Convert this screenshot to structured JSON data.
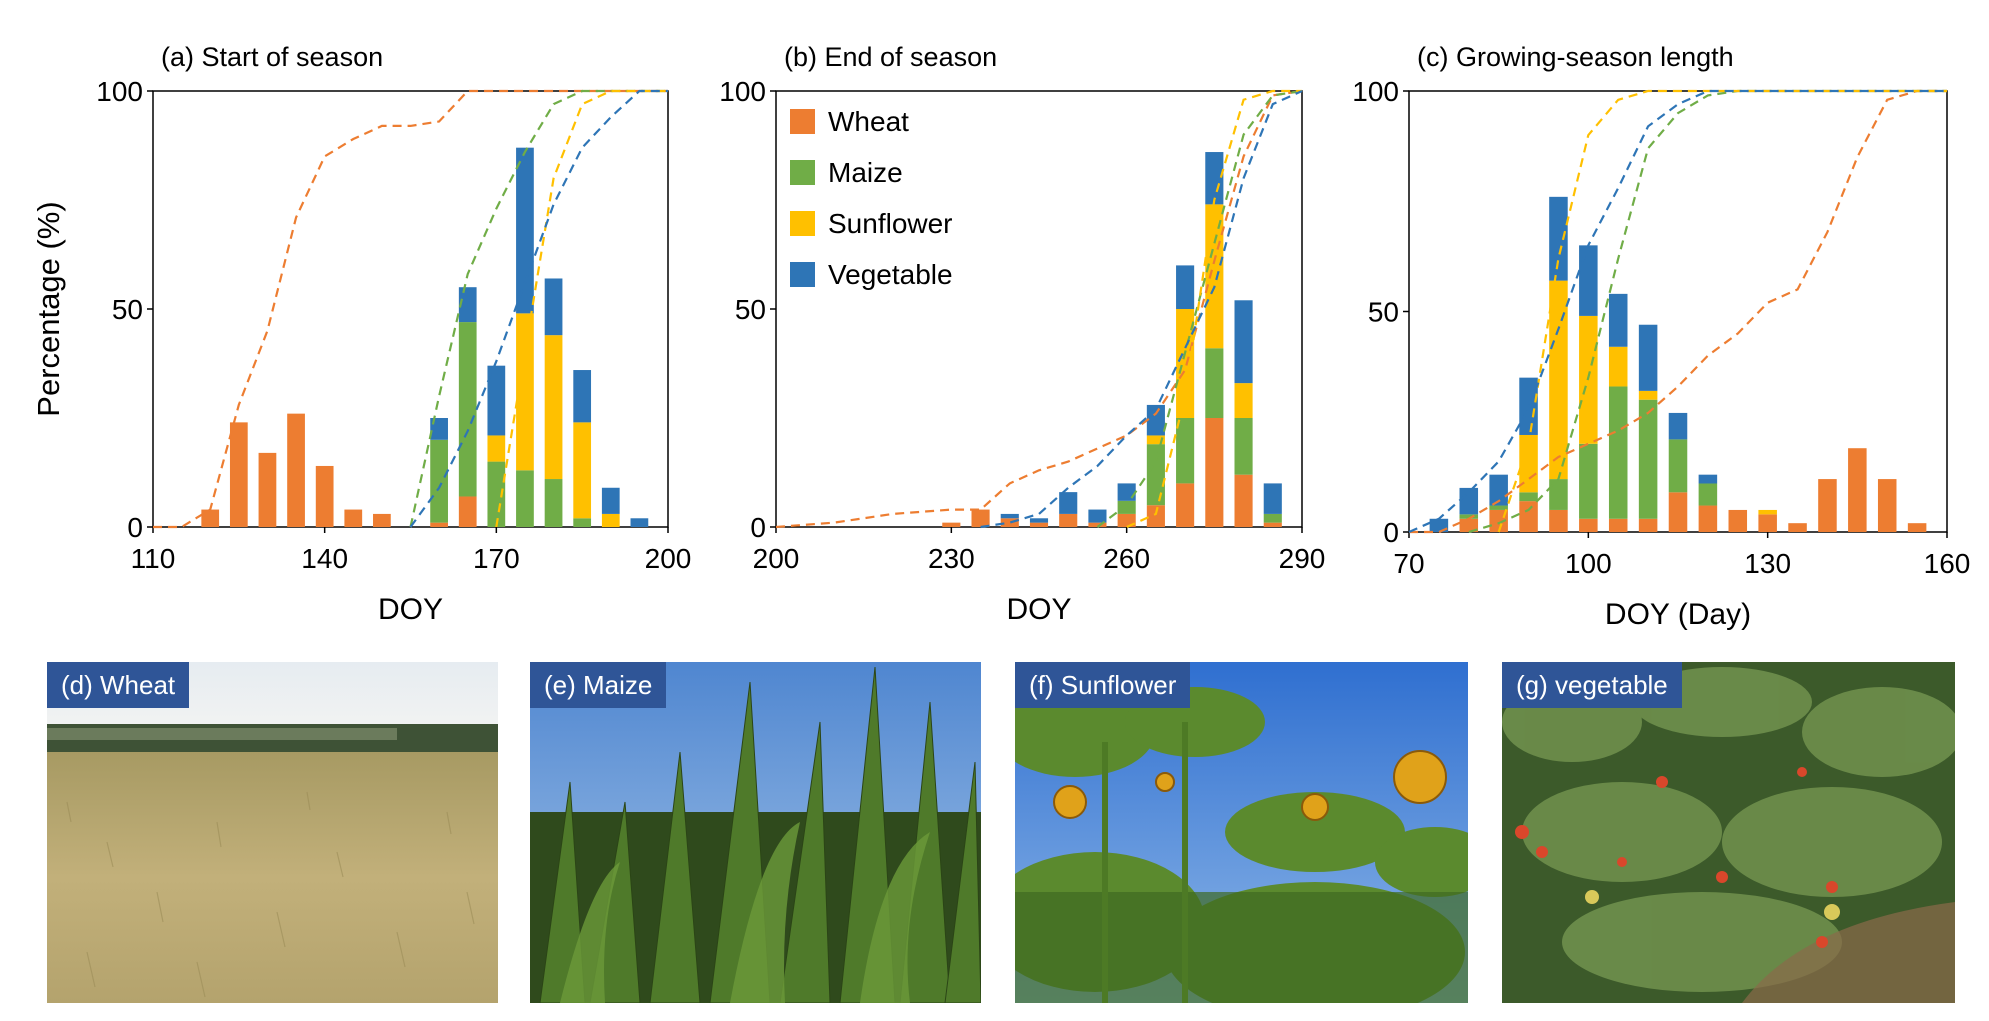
{
  "y_axis_label": "Percentage (%)",
  "colors": {
    "Wheat": "#ed7d31",
    "Maize": "#70ad47",
    "Sunflower": "#ffc000",
    "Vegetable": "#2e75b6"
  },
  "legend": [
    "Wheat",
    "Maize",
    "Sunflower",
    "Vegetable"
  ],
  "chart_data": [
    {
      "type": "bar",
      "stacked": true,
      "title": "(a) Start of season",
      "xlabel": "DOY",
      "ylabel": "Percentage (%)",
      "xlim": [
        110,
        200
      ],
      "ylim": [
        0,
        100
      ],
      "xticks": [
        "110",
        "140",
        "170",
        "200"
      ],
      "xtick_values": [
        110,
        140,
        170,
        200
      ],
      "yticks": [
        "0",
        "50",
        "100"
      ],
      "ytick_values": [
        0,
        50,
        100
      ],
      "x": [
        120,
        125,
        130,
        135,
        140,
        145,
        150,
        160,
        165,
        170,
        175,
        180,
        185,
        190,
        195
      ],
      "series": [
        {
          "name": "Wheat",
          "values": [
            4,
            24,
            17,
            26,
            14,
            4,
            3,
            1,
            7,
            0,
            0,
            0,
            0,
            0,
            0
          ]
        },
        {
          "name": "Maize",
          "values": [
            0,
            0,
            0,
            0,
            0,
            0,
            0,
            19,
            40,
            15,
            13,
            11,
            2,
            0,
            0
          ]
        },
        {
          "name": "Sunflower",
          "values": [
            0,
            0,
            0,
            0,
            0,
            0,
            0,
            0,
            0,
            6,
            36,
            33,
            22,
            3,
            0
          ]
        },
        {
          "name": "Vegetable",
          "values": [
            0,
            0,
            0,
            0,
            0,
            0,
            0,
            5,
            8,
            16,
            38,
            13,
            12,
            6,
            2
          ]
        }
      ],
      "cumulative_lines": [
        {
          "name": "Wheat",
          "x": [
            110,
            115,
            120,
            125,
            130,
            135,
            140,
            145,
            150,
            155,
            160,
            165,
            170,
            175,
            200
          ],
          "y": [
            0,
            0,
            4,
            28,
            45,
            71,
            85,
            89,
            92,
            92,
            93,
            100,
            100,
            100,
            100
          ]
        },
        {
          "name": "Maize",
          "x": [
            155,
            160,
            165,
            170,
            175,
            180,
            185,
            190,
            200
          ],
          "y": [
            0,
            30,
            58,
            73,
            86,
            97,
            100,
            100,
            100
          ]
        },
        {
          "name": "Sunflower",
          "x": [
            170,
            175,
            180,
            185,
            190,
            195,
            200
          ],
          "y": [
            0,
            40,
            80,
            97,
            100,
            100,
            100
          ]
        },
        {
          "name": "Vegetable",
          "x": [
            155,
            160,
            165,
            170,
            175,
            180,
            185,
            190,
            195,
            200
          ],
          "y": [
            0,
            9,
            22,
            38,
            56,
            74,
            87,
            94,
            100,
            100
          ]
        }
      ]
    },
    {
      "type": "bar",
      "stacked": true,
      "title": "(b) End of season",
      "xlabel": "DOY",
      "ylabel": "",
      "xlim": [
        200,
        290
      ],
      "ylim": [
        0,
        100
      ],
      "xticks": [
        "200",
        "230",
        "260",
        "290"
      ],
      "xtick_values": [
        200,
        230,
        260,
        290
      ],
      "yticks": [
        "0",
        "50",
        "100"
      ],
      "ytick_values": [
        0,
        50,
        100
      ],
      "x": [
        230,
        235,
        240,
        245,
        250,
        255,
        260,
        265,
        270,
        275,
        280,
        285
      ],
      "series": [
        {
          "name": "Wheat",
          "values": [
            1,
            4,
            2,
            1,
            3,
            1,
            3,
            5,
            10,
            25,
            12,
            1
          ]
        },
        {
          "name": "Maize",
          "values": [
            0,
            0,
            0,
            0,
            0,
            0,
            3,
            14,
            15,
            16,
            13,
            2
          ]
        },
        {
          "name": "Sunflower",
          "values": [
            0,
            0,
            0,
            0,
            0,
            0,
            0,
            2,
            25,
            33,
            8,
            0
          ]
        },
        {
          "name": "Vegetable",
          "values": [
            0,
            0,
            1,
            1,
            5,
            3,
            4,
            7,
            10,
            12,
            19,
            7
          ]
        }
      ],
      "cumulative_lines": [
        {
          "name": "Wheat",
          "x": [
            200,
            210,
            220,
            230,
            235,
            240,
            245,
            250,
            255,
            260,
            265,
            270,
            275,
            280,
            285,
            290
          ],
          "y": [
            0,
            1,
            3,
            4,
            4,
            10,
            13,
            15,
            18,
            21,
            26,
            36,
            61,
            85,
            99,
            100
          ]
        },
        {
          "name": "Maize",
          "x": [
            255,
            260,
            265,
            270,
            275,
            280,
            285,
            290
          ],
          "y": [
            0,
            5,
            15,
            40,
            65,
            90,
            99,
            100
          ]
        },
        {
          "name": "Sunflower",
          "x": [
            260,
            265,
            270,
            275,
            280,
            285,
            290
          ],
          "y": [
            0,
            3,
            30,
            75,
            98,
            100,
            100
          ]
        },
        {
          "name": "Vegetable",
          "x": [
            235,
            240,
            245,
            250,
            255,
            260,
            265,
            270,
            275,
            280,
            285,
            290
          ],
          "y": [
            0,
            1,
            3,
            9,
            14,
            21,
            27,
            41,
            55,
            80,
            97,
            100
          ]
        }
      ]
    },
    {
      "type": "bar",
      "stacked": true,
      "title": "(c) Growing-season length",
      "xlabel": "DOY (Day)",
      "ylabel": "",
      "xlim": [
        70,
        160
      ],
      "ylim": [
        0,
        100
      ],
      "xticks": [
        "70",
        "100",
        "130",
        "160"
      ],
      "xtick_values": [
        70,
        100,
        130,
        160
      ],
      "yticks": [
        "0",
        "50",
        "100"
      ],
      "ytick_values": [
        0,
        50,
        100
      ],
      "x": [
        75,
        80,
        85,
        90,
        95,
        100,
        105,
        110,
        115,
        120,
        125,
        130,
        135,
        140,
        145,
        150,
        155
      ],
      "series": [
        {
          "name": "Wheat",
          "values": [
            0,
            3,
            5,
            7,
            5,
            3,
            3,
            3,
            9,
            6,
            5,
            4,
            2,
            12,
            19,
            12,
            2
          ]
        },
        {
          "name": "Maize",
          "values": [
            0,
            1,
            1,
            2,
            7,
            17,
            30,
            27,
            12,
            5,
            0,
            0,
            0,
            0,
            0,
            0,
            0
          ]
        },
        {
          "name": "Sunflower",
          "values": [
            0,
            0,
            0,
            13,
            45,
            29,
            9,
            2,
            0,
            0,
            0,
            1,
            0,
            0,
            0,
            0,
            0
          ]
        },
        {
          "name": "Vegetable",
          "values": [
            3,
            6,
            7,
            13,
            19,
            16,
            12,
            15,
            6,
            2,
            0,
            0,
            0,
            0,
            0,
            0,
            0
          ]
        }
      ],
      "cumulative_lines": [
        {
          "name": "Wheat",
          "x": [
            70,
            75,
            80,
            85,
            90,
            95,
            100,
            105,
            110,
            115,
            120,
            125,
            130,
            135,
            140,
            145,
            150,
            155,
            160
          ],
          "y": [
            0,
            0,
            3,
            7,
            12,
            17,
            20,
            23,
            27,
            33,
            40,
            45,
            52,
            55,
            68,
            85,
            98,
            100,
            100
          ]
        },
        {
          "name": "Maize",
          "x": [
            80,
            85,
            90,
            95,
            100,
            105,
            110,
            115,
            120,
            125,
            160
          ],
          "y": [
            0,
            2,
            5,
            12,
            35,
            62,
            87,
            95,
            99,
            100,
            100
          ]
        },
        {
          "name": "Sunflower",
          "x": [
            85,
            90,
            95,
            100,
            105,
            110,
            115,
            160
          ],
          "y": [
            0,
            20,
            62,
            90,
            98,
            100,
            100,
            100
          ]
        },
        {
          "name": "Vegetable",
          "x": [
            70,
            75,
            80,
            85,
            90,
            95,
            100,
            105,
            110,
            115,
            120,
            160
          ],
          "y": [
            0,
            3,
            9,
            16,
            28,
            46,
            65,
            78,
            92,
            97,
            100,
            100
          ]
        }
      ]
    }
  ],
  "photos": [
    {
      "label": "(d) Wheat",
      "subject": "wheat-field"
    },
    {
      "label": "(e) Maize",
      "subject": "maize-field"
    },
    {
      "label": "(f) Sunflower",
      "subject": "sunflower-field"
    },
    {
      "label": "(g) vegetable",
      "subject": "vegetable-field"
    }
  ]
}
